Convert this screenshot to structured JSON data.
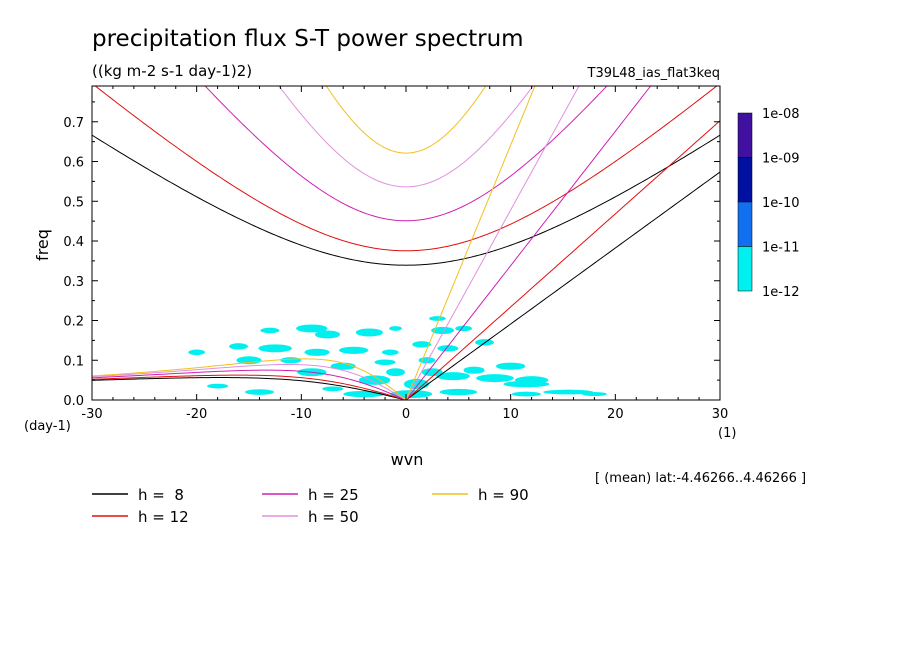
{
  "chart_data": {
    "type": "line",
    "title": "precipitation flux S-T power spectrum",
    "subtitle": "((kg m-2 s-1 day-1)2)",
    "run_label": "T39L48_ias_flat3keq",
    "xlabel": "wvn",
    "ylabel": "freq",
    "x_unit": "(1)",
    "y_unit": "(day-1)",
    "xlim": [
      -30,
      30
    ],
    "ylim": [
      0,
      0.79
    ],
    "xticks": [
      -30,
      -20,
      -10,
      0,
      10,
      20,
      30
    ],
    "xtick_labels": [
      "-30",
      "-20",
      "-10",
      "0",
      "10",
      "20",
      "30"
    ],
    "yticks": [
      0.0,
      0.1,
      0.2,
      0.3,
      0.4,
      0.5,
      0.6,
      0.7
    ],
    "ytick_labels": [
      "0.0",
      "0.1",
      "0.2",
      "0.3",
      "0.4",
      "0.5",
      "0.6",
      "0.7"
    ],
    "note": "[ (mean) lat:-4.46266..4.46266 ]",
    "legend_position": "bottom",
    "series": [
      {
        "name": "h =  8",
        "legend_value": "8",
        "color": "#000000"
      },
      {
        "name": "h = 12",
        "legend_value": "12",
        "color": "#e01010"
      },
      {
        "name": "h = 25",
        "legend_value": "25",
        "color": "#d020b0"
      },
      {
        "name": "h = 50",
        "legend_value": "50",
        "color": "#e090e0"
      },
      {
        "name": "h = 90",
        "legend_value": "90",
        "color": "#f0c020"
      }
    ],
    "colorbar": {
      "labels": [
        "1e-08",
        "1e-09",
        "1e-10",
        "1e-11",
        "1e-12"
      ],
      "colors": [
        "#4010a0",
        "#0010a0",
        "#1070f0",
        "#00f0f0"
      ]
    },
    "shaded_fill_color": "#00f0f0"
  }
}
